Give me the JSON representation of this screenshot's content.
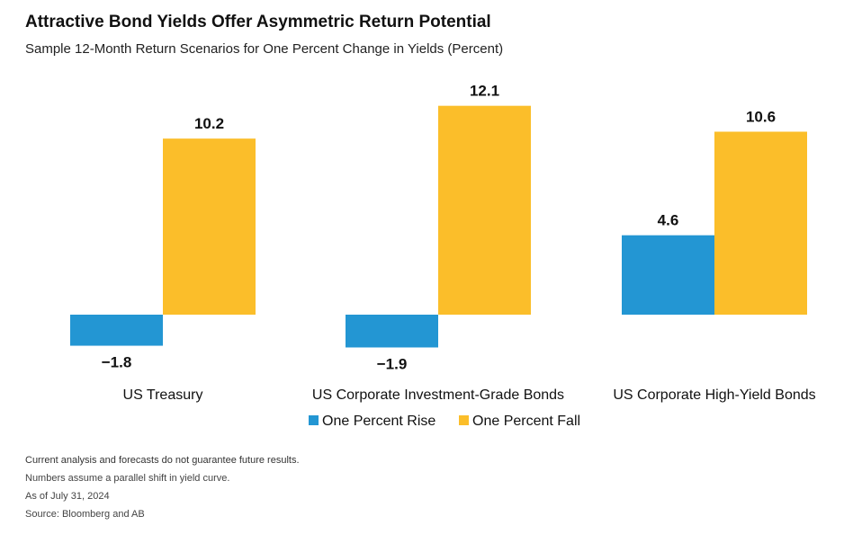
{
  "header": {
    "title": "Attractive Bond Yields Offer Asymmetric Return Potential",
    "subtitle": "Sample 12-Month Return Scenarios for One Percent Change in Yields (Percent)"
  },
  "chart_data": {
    "type": "bar",
    "categories": [
      "US Treasury",
      "US Corporate Investment-Grade Bonds",
      "US Corporate High-Yield Bonds"
    ],
    "series": [
      {
        "name": "One Percent Rise",
        "values": [
          -1.8,
          -1.9,
          4.6
        ],
        "labels": [
          "−1.8",
          "−1.9",
          "4.6"
        ],
        "color": "#2396D3"
      },
      {
        "name": "One Percent Fall",
        "values": [
          10.2,
          12.1,
          10.6
        ],
        "labels": [
          "10.2",
          "12.1",
          "10.6"
        ],
        "color": "#FBBE2A"
      }
    ],
    "title": "Attractive Bond Yields Offer Asymmetric Return Potential",
    "subtitle": "Sample 12-Month Return Scenarios for One Percent Change in Yields (Percent)",
    "xlabel": "",
    "ylabel": "",
    "ylim": [
      -1.9,
      12.1
    ],
    "grid": false,
    "legend": "bottom-center"
  },
  "footnotes": {
    "disclaimer": "Current analysis and forecasts do not guarantee future results.",
    "assumption": "Numbers assume a parallel shift in yield curve.",
    "as_of": "As of July 31, 2024",
    "source": "Source: Bloomberg and AB"
  }
}
